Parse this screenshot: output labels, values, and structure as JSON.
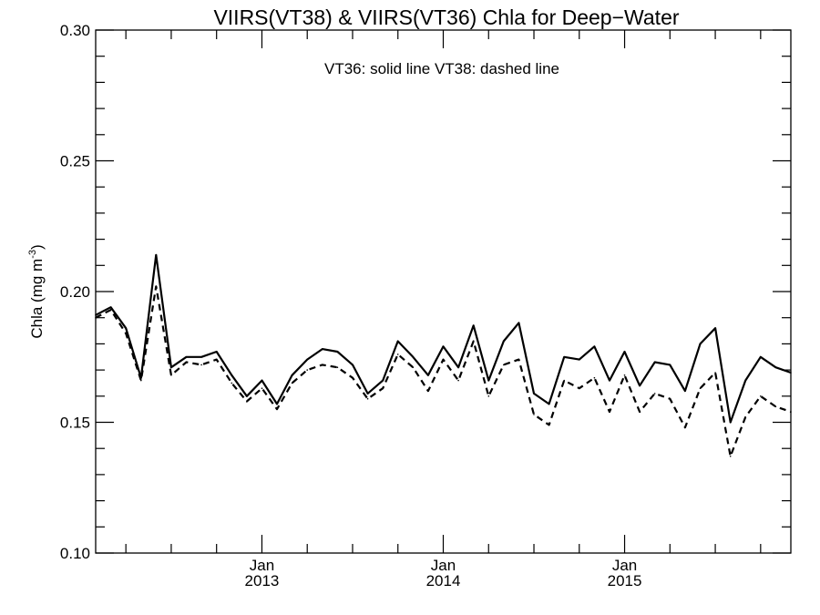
{
  "chart_data": {
    "type": "line",
    "title": "VIIRS(VT38) & VIIRS(VT36)  Chla for Deep−Water",
    "annotation": "VT36: solid line   VT38: dashed line",
    "ylabel_main": "Chla (mg m",
    "ylabel_sup": "-3",
    "ylabel_close": ")",
    "xlabel": "",
    "ylim": [
      0.1,
      0.3
    ],
    "y_ticks": [
      0.1,
      0.15,
      0.2,
      0.25,
      0.3
    ],
    "y_tick_labels": [
      "0.10",
      "0.15",
      "0.20",
      "0.25",
      "0.30"
    ],
    "x_ticks": [
      {
        "date": "2013-01",
        "month": "Jan",
        "year": "2013"
      },
      {
        "date": "2014-01",
        "month": "Jan",
        "year": "2014"
      },
      {
        "date": "2015-01",
        "month": "Jan",
        "year": "2015"
      }
    ],
    "xlim": [
      "2012-02",
      "2015-12"
    ],
    "x": [
      "2012-02",
      "2012-03",
      "2012-04",
      "2012-05",
      "2012-06",
      "2012-07",
      "2012-08",
      "2012-09",
      "2012-10",
      "2012-11",
      "2012-12",
      "2013-01",
      "2013-02",
      "2013-03",
      "2013-04",
      "2013-05",
      "2013-06",
      "2013-07",
      "2013-08",
      "2013-09",
      "2013-10",
      "2013-11",
      "2013-12",
      "2014-01",
      "2014-02",
      "2014-03",
      "2014-04",
      "2014-05",
      "2014-06",
      "2014-07",
      "2014-08",
      "2014-09",
      "2014-10",
      "2014-11",
      "2014-12",
      "2015-01",
      "2015-02",
      "2015-03",
      "2015-04",
      "2015-05",
      "2015-06",
      "2015-07",
      "2015-08",
      "2015-09",
      "2015-10",
      "2015-11",
      "2015-12"
    ],
    "series": [
      {
        "style": "solid",
        "values": [
          0.191,
          0.194,
          0.186,
          0.167,
          0.214,
          0.171,
          0.175,
          0.175,
          0.177,
          0.168,
          0.16,
          0.166,
          0.157,
          0.168,
          0.174,
          0.178,
          0.177,
          0.172,
          0.161,
          0.166,
          0.181,
          0.175,
          0.168,
          0.179,
          0.171,
          0.187,
          0.166,
          0.181,
          0.188,
          0.161,
          0.157,
          0.175,
          0.174,
          0.179,
          0.166,
          0.177,
          0.164,
          0.173,
          0.172,
          0.162,
          0.18,
          0.186,
          0.15,
          0.166,
          0.175,
          0.171,
          0.169
        ]
      },
      {
        "style": "dashed",
        "values": [
          0.19,
          0.193,
          0.184,
          0.166,
          0.202,
          0.168,
          0.173,
          0.172,
          0.174,
          0.165,
          0.158,
          0.163,
          0.155,
          0.165,
          0.17,
          0.172,
          0.171,
          0.167,
          0.159,
          0.163,
          0.176,
          0.171,
          0.162,
          0.174,
          0.166,
          0.181,
          0.16,
          0.172,
          0.174,
          0.153,
          0.149,
          0.166,
          0.163,
          0.167,
          0.154,
          0.168,
          0.154,
          0.161,
          0.159,
          0.148,
          0.163,
          0.169,
          0.137,
          0.152,
          0.16,
          0.156,
          0.154
        ]
      }
    ],
    "grid": false
  }
}
